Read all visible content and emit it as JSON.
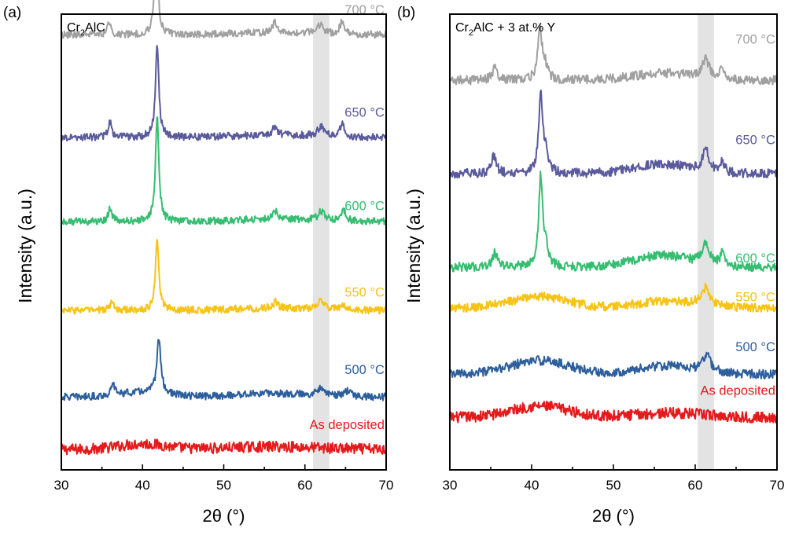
{
  "chart_data": [
    {
      "type": "line",
      "panel_label": "(a)",
      "composition": {
        "base": "Cr",
        "sub": "2",
        "rest": "AlC"
      },
      "xlabel": "2θ (°)",
      "ylabel": "Intensity (a.u.)",
      "xlim": [
        30,
        70
      ],
      "xticks": [
        30,
        40,
        50,
        60,
        70
      ],
      "highlight_band": [
        61,
        63
      ],
      "series": [
        {
          "name": "As deposited",
          "color": "#e41a1c",
          "baseline": 0.045,
          "noise": 0.012,
          "humps": [
            [
              40,
              0.012,
              4
            ],
            [
              56,
              0.006,
              8
            ]
          ],
          "peaks": []
        },
        {
          "name": "500 °C",
          "color": "#2d5f9c",
          "baseline": 0.16,
          "noise": 0.008,
          "humps": [
            [
              40,
              0.01,
              4
            ],
            [
              56,
              0.008,
              6
            ]
          ],
          "peaks": [
            [
              36.4,
              0.022,
              0.3
            ],
            [
              42.0,
              0.12,
              0.3
            ],
            [
              62.0,
              0.02,
              0.5
            ],
            [
              65.3,
              0.012,
              0.5
            ]
          ]
        },
        {
          "name": "550 °C",
          "color": "#f7c315",
          "baseline": 0.35,
          "noise": 0.008,
          "humps": [
            [
              56,
              0.005,
              6
            ]
          ],
          "peaks": [
            [
              36.2,
              0.018,
              0.3
            ],
            [
              41.8,
              0.16,
              0.25
            ],
            [
              56.4,
              0.015,
              0.3
            ],
            [
              62.0,
              0.02,
              0.5
            ],
            [
              64.8,
              0.01,
              0.4
            ]
          ]
        },
        {
          "name": "600 °C",
          "color": "#37bd72",
          "baseline": 0.545,
          "noise": 0.008,
          "humps": [
            [
              56,
              0.005,
              6
            ]
          ],
          "peaks": [
            [
              36.0,
              0.03,
              0.25
            ],
            [
              41.8,
              0.23,
              0.25
            ],
            [
              56.3,
              0.02,
              0.3
            ],
            [
              62.0,
              0.02,
              0.5
            ],
            [
              64.7,
              0.028,
              0.35
            ]
          ]
        },
        {
          "name": "650 °C",
          "color": "#5a5a9c",
          "baseline": 0.73,
          "noise": 0.008,
          "humps": [
            [
              56,
              0.005,
              6
            ]
          ],
          "peaks": [
            [
              36.0,
              0.032,
              0.25
            ],
            [
              41.8,
              0.2,
              0.25
            ],
            [
              56.3,
              0.02,
              0.3
            ],
            [
              62.0,
              0.022,
              0.5
            ],
            [
              64.6,
              0.026,
              0.35
            ]
          ]
        },
        {
          "name": "700 °C",
          "color": "#a0a0a0",
          "baseline": 0.955,
          "noise": 0.008,
          "humps": [
            [
              56,
              0.005,
              6
            ]
          ],
          "peaks": [
            [
              35.9,
              0.028,
              0.25
            ],
            [
              41.7,
              0.2,
              0.25
            ],
            [
              56.3,
              0.022,
              0.3
            ],
            [
              61.9,
              0.02,
              0.5
            ],
            [
              64.6,
              0.028,
              0.35
            ]
          ]
        }
      ],
      "series_labels": [
        {
          "text": "As deposited",
          "color": "#e41a1c",
          "anchor_x": 69.8,
          "y": 0.09
        },
        {
          "text": "500 °C",
          "color": "#2d5f9c",
          "anchor_x": 69.8,
          "y": 0.21
        },
        {
          "text": "550 °C",
          "color": "#f7c315",
          "anchor_x": 69.8,
          "y": 0.38
        },
        {
          "text": "600 °C",
          "color": "#37bd72",
          "anchor_x": 69.8,
          "y": 0.57
        },
        {
          "text": "650 °C",
          "color": "#5a5a9c",
          "anchor_x": 69.8,
          "y": 0.775
        },
        {
          "text": "700 °C",
          "color": "#a0a0a0",
          "anchor_x": 69.8,
          "y": 1.0
        }
      ]
    },
    {
      "type": "line",
      "panel_label": "(b)",
      "composition": {
        "base": "Cr",
        "sub": "2",
        "rest": "AlC + 3 at.% Y"
      },
      "xlabel": "2θ (°)",
      "ylabel": "Intensity (a.u.)",
      "xlim": [
        30,
        70
      ],
      "xticks": [
        30,
        40,
        50,
        60,
        70
      ],
      "highlight_band": [
        60.3,
        62.3
      ],
      "series": [
        {
          "name": "As deposited",
          "color": "#e41a1c",
          "baseline": 0.115,
          "noise": 0.012,
          "humps": [
            [
              41,
              0.025,
              5
            ],
            [
              57,
              0.01,
              6
            ]
          ],
          "peaks": []
        },
        {
          "name": "500 °C",
          "color": "#2d5f9c",
          "baseline": 0.21,
          "noise": 0.01,
          "humps": [
            [
              41,
              0.03,
              5
            ],
            [
              56.5,
              0.018,
              5
            ]
          ],
          "peaks": [
            [
              61.4,
              0.035,
              0.6
            ]
          ]
        },
        {
          "name": "550 °C",
          "color": "#f7c315",
          "baseline": 0.355,
          "noise": 0.01,
          "humps": [
            [
              41,
              0.025,
              5
            ],
            [
              56.5,
              0.015,
              5
            ]
          ],
          "peaks": [
            [
              61.3,
              0.04,
              0.6
            ]
          ]
        },
        {
          "name": "600 °C",
          "color": "#37bd72",
          "baseline": 0.445,
          "noise": 0.01,
          "humps": [
            [
              56,
              0.025,
              5
            ]
          ],
          "peaks": [
            [
              35.5,
              0.03,
              0.35
            ],
            [
              41.1,
              0.19,
              0.28
            ],
            [
              41.7,
              0.04,
              0.4
            ],
            [
              61.3,
              0.045,
              0.5
            ],
            [
              63.3,
              0.028,
              0.3
            ]
          ]
        },
        {
          "name": "650 °C",
          "color": "#5a5a9c",
          "baseline": 0.65,
          "noise": 0.01,
          "humps": [
            [
              56,
              0.02,
              5
            ]
          ],
          "peaks": [
            [
              35.4,
              0.04,
              0.35
            ],
            [
              41.1,
              0.17,
              0.28
            ],
            [
              41.7,
              0.04,
              0.4
            ],
            [
              61.3,
              0.045,
              0.5
            ],
            [
              63.3,
              0.026,
              0.3
            ]
          ]
        },
        {
          "name": "700 °C",
          "color": "#a0a0a0",
          "baseline": 0.855,
          "noise": 0.01,
          "humps": [
            [
              56,
              0.015,
              5
            ]
          ],
          "peaks": [
            [
              35.5,
              0.03,
              0.35
            ],
            [
              41.0,
              0.11,
              0.3
            ],
            [
              41.6,
              0.03,
              0.4
            ],
            [
              61.3,
              0.04,
              0.55
            ],
            [
              63.3,
              0.022,
              0.3
            ]
          ]
        }
      ],
      "series_labels": [
        {
          "text": "As deposited",
          "color": "#e41a1c",
          "anchor_x": 69.8,
          "y": 0.165
        },
        {
          "text": "500 °C",
          "color": "#2d5f9c",
          "anchor_x": 69.8,
          "y": 0.26
        },
        {
          "text": "550 °C",
          "color": "#f7c315",
          "anchor_x": 69.8,
          "y": 0.37
        },
        {
          "text": "600 °C",
          "color": "#37bd72",
          "anchor_x": 69.8,
          "y": 0.455
        },
        {
          "text": "650 °C",
          "color": "#5a5a9c",
          "anchor_x": 69.8,
          "y": 0.715
        },
        {
          "text": "700 °C",
          "color": "#a0a0a0",
          "anchor_x": 69.8,
          "y": 0.935
        }
      ]
    }
  ]
}
